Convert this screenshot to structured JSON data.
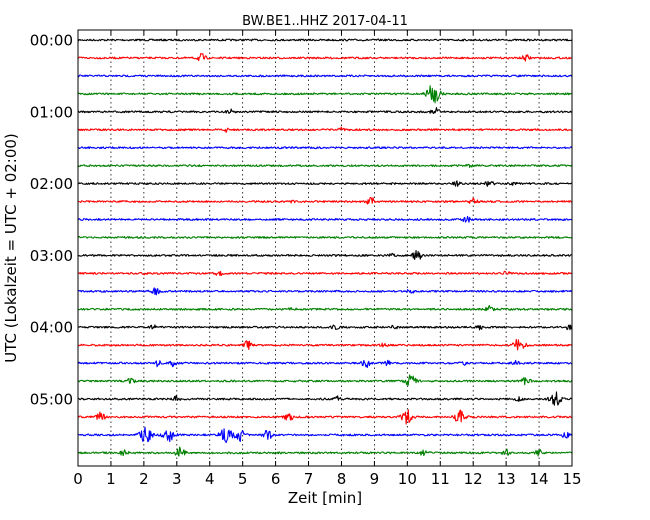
{
  "chart_data": {
    "type": "line",
    "title": "BW.BE1..HHZ 2017-04-11",
    "xlabel": "Zeit  [min]",
    "ylabel": "UTC (Lokalzeit = UTC + 02:00)",
    "xlim": [
      0,
      15
    ],
    "xticks": [
      "0",
      "1",
      "2",
      "3",
      "4",
      "5",
      "6",
      "7",
      "8",
      "9",
      "10",
      "11",
      "12",
      "13",
      "14",
      "15"
    ],
    "yticks": [
      "00:00",
      "01:00",
      "02:00",
      "03:00",
      "04:00",
      "05:00"
    ],
    "row_interval_minutes": 15,
    "vertical_grid": "dotted",
    "series": [
      {
        "row": 0,
        "color": "#000000",
        "events": []
      },
      {
        "row": 1,
        "color": "#ff0000",
        "events": [
          {
            "x": 3.75,
            "amp": 4
          },
          {
            "x": 13.6,
            "amp": 3
          }
        ]
      },
      {
        "row": 2,
        "color": "#0000ff",
        "events": []
      },
      {
        "row": 3,
        "color": "#008000",
        "events": [
          {
            "x": 10.75,
            "amp": 9
          },
          {
            "x": 10.9,
            "amp": 3
          }
        ]
      },
      {
        "row": 4,
        "color": "#000000",
        "events": [
          {
            "x": 4.6,
            "amp": 3
          },
          {
            "x": 10.85,
            "amp": 4
          }
        ]
      },
      {
        "row": 5,
        "color": "#ff0000",
        "events": [
          {
            "x": 4.5,
            "amp": 2
          },
          {
            "x": 7.95,
            "amp": 3
          }
        ]
      },
      {
        "row": 6,
        "color": "#0000ff",
        "events": []
      },
      {
        "row": 7,
        "color": "#008000",
        "events": [
          {
            "x": 11.9,
            "amp": 2
          }
        ]
      },
      {
        "row": 8,
        "color": "#000000",
        "events": [
          {
            "x": 11.5,
            "amp": 2
          },
          {
            "x": 12.5,
            "amp": 3
          },
          {
            "x": 13.2,
            "amp": 2
          }
        ]
      },
      {
        "row": 9,
        "color": "#ff0000",
        "events": [
          {
            "x": 6.5,
            "amp": 1
          },
          {
            "x": 8.9,
            "amp": 4
          },
          {
            "x": 12.0,
            "amp": 3
          }
        ]
      },
      {
        "row": 10,
        "color": "#0000ff",
        "events": [
          {
            "x": 11.8,
            "amp": 3
          }
        ]
      },
      {
        "row": 11,
        "color": "#008000",
        "events": []
      },
      {
        "row": 12,
        "color": "#000000",
        "events": [
          {
            "x": 9.5,
            "amp": 2
          },
          {
            "x": 10.3,
            "amp": 5
          }
        ]
      },
      {
        "row": 13,
        "color": "#ff0000",
        "events": [
          {
            "x": 2.0,
            "amp": 1
          },
          {
            "x": 4.3,
            "amp": 3
          },
          {
            "x": 13.0,
            "amp": 2
          }
        ]
      },
      {
        "row": 14,
        "color": "#0000ff",
        "events": [
          {
            "x": 2.35,
            "amp": 4
          },
          {
            "x": 10.1,
            "amp": 2
          }
        ]
      },
      {
        "row": 15,
        "color": "#008000",
        "events": [
          {
            "x": 6.5,
            "amp": 2
          },
          {
            "x": 12.5,
            "amp": 3
          }
        ]
      },
      {
        "row": 16,
        "color": "#000000",
        "events": [
          {
            "x": 2.3,
            "amp": 2
          },
          {
            "x": 7.8,
            "amp": 3
          },
          {
            "x": 9.6,
            "amp": 2
          },
          {
            "x": 12.2,
            "amp": 2
          },
          {
            "x": 14.9,
            "amp": 2
          }
        ]
      },
      {
        "row": 17,
        "color": "#ff0000",
        "events": [
          {
            "x": 5.15,
            "amp": 4
          },
          {
            "x": 9.3,
            "amp": 2
          },
          {
            "x": 13.4,
            "amp": 7
          }
        ]
      },
      {
        "row": 18,
        "color": "#0000ff",
        "events": [
          {
            "x": 2.4,
            "amp": 3
          },
          {
            "x": 2.9,
            "amp": 3
          },
          {
            "x": 8.75,
            "amp": 4
          },
          {
            "x": 9.4,
            "amp": 2
          },
          {
            "x": 11.7,
            "amp": 2
          },
          {
            "x": 13.3,
            "amp": 2
          }
        ]
      },
      {
        "row": 19,
        "color": "#008000",
        "events": [
          {
            "x": 1.6,
            "amp": 3
          },
          {
            "x": 10.1,
            "amp": 6
          },
          {
            "x": 13.6,
            "amp": 4
          }
        ]
      },
      {
        "row": 20,
        "color": "#000000",
        "events": [
          {
            "x": 3.0,
            "amp": 3
          },
          {
            "x": 7.9,
            "amp": 3
          },
          {
            "x": 13.4,
            "amp": 3
          },
          {
            "x": 14.5,
            "amp": 7
          }
        ]
      },
      {
        "row": 21,
        "color": "#ff0000",
        "events": [
          {
            "x": 0.7,
            "amp": 5
          },
          {
            "x": 6.4,
            "amp": 4
          },
          {
            "x": 10.0,
            "amp": 7
          },
          {
            "x": 11.6,
            "amp": 7
          }
        ]
      },
      {
        "row": 22,
        "color": "#0000ff",
        "events": [
          {
            "x": 2.05,
            "amp": 8
          },
          {
            "x": 2.75,
            "amp": 7
          },
          {
            "x": 4.5,
            "amp": 8
          },
          {
            "x": 4.9,
            "amp": 6
          },
          {
            "x": 5.75,
            "amp": 5
          },
          {
            "x": 14.8,
            "amp": 3
          }
        ]
      },
      {
        "row": 23,
        "color": "#008000",
        "events": [
          {
            "x": 1.4,
            "amp": 3
          },
          {
            "x": 3.1,
            "amp": 5
          },
          {
            "x": 10.5,
            "amp": 3
          },
          {
            "x": 13.0,
            "amp": 3
          },
          {
            "x": 14.0,
            "amp": 3
          }
        ]
      }
    ]
  }
}
